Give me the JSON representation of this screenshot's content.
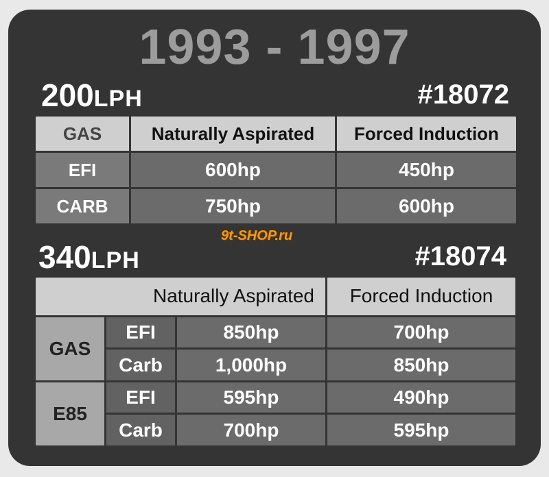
{
  "title": "1993 - 1997",
  "watermark": "9t-SHOP.ru",
  "sections": [
    {
      "flow": "200",
      "unit": "LPH",
      "part_number": "#18072",
      "table": {
        "header": [
          "GAS",
          "Naturally Aspirated",
          "Forced Induction"
        ],
        "rows": [
          [
            "EFI",
            "600hp",
            "450hp"
          ],
          [
            "CARB",
            "750hp",
            "600hp"
          ]
        ]
      }
    },
    {
      "flow": "340",
      "unit": "LPH",
      "part_number": "#18074",
      "table": {
        "header": [
          "Naturally Aspirated",
          "Forced Induction"
        ],
        "groups": [
          {
            "fuel": "GAS",
            "rows": [
              [
                "EFI",
                "850hp",
                "700hp"
              ],
              [
                "Carb",
                "1,000hp",
                "850hp"
              ]
            ]
          },
          {
            "fuel": "E85",
            "rows": [
              [
                "EFI",
                "595hp",
                "490hp"
              ],
              [
                "Carb",
                "700hp",
                "595hp"
              ]
            ]
          }
        ]
      }
    }
  ]
}
